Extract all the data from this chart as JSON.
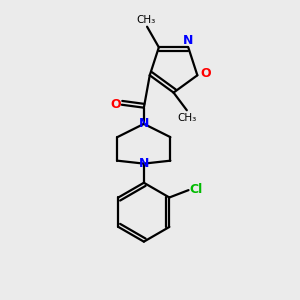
{
  "bg_color": "#ebebeb",
  "bond_color": "#000000",
  "N_color": "#0000ff",
  "O_color": "#ff0000",
  "Cl_color": "#00bb00",
  "line_width": 1.6,
  "figsize": [
    3.0,
    3.0
  ],
  "dpi": 100,
  "xlim": [
    0,
    10
  ],
  "ylim": [
    0,
    10
  ]
}
